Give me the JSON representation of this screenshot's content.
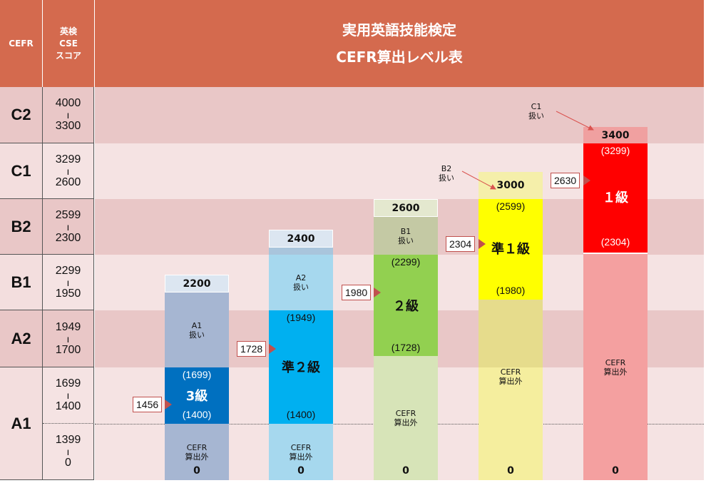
{
  "header": {
    "cefr": "CEFR",
    "cse_line1": "英検",
    "cse_line2": "CSE",
    "cse_line3": "スコア",
    "title_line1": "実用英語技能検定",
    "title_line2": "CEFR算出レベル表"
  },
  "levels": [
    {
      "name": "C2",
      "top": "4000",
      "bottom": "3300"
    },
    {
      "name": "C1",
      "top": "3299",
      "bottom": "2600"
    },
    {
      "name": "B2",
      "top": "2599",
      "bottom": "2300"
    },
    {
      "name": "B1",
      "top": "2299",
      "bottom": "1950"
    },
    {
      "name": "A2",
      "top": "1949",
      "bottom": "1700"
    },
    {
      "name": "A1",
      "top": "1699",
      "bottom": "1400",
      "top2": "1399",
      "bottom2": "0"
    }
  ],
  "range_separator": "ı",
  "grades": [
    {
      "name": "3級",
      "max": "2200",
      "range_top": "(1699)",
      "range_bottom": "(1400)",
      "pass": "1456",
      "upper_note_1": "A1",
      "upper_note_2": "扱い",
      "lower_note_1": "CEFR",
      "lower_note_2": "算出外",
      "zero": "0",
      "color": "#0070c0"
    },
    {
      "name": "準２級",
      "max": "2400",
      "range_top": "(1949)",
      "range_bottom": "(1400)",
      "pass": "1728",
      "upper_note_1": "A2",
      "upper_note_2": "扱い",
      "lower_note_1": "CEFR",
      "lower_note_2": "算出外",
      "zero": "0",
      "color": "#00b0f0"
    },
    {
      "name": "２級",
      "max": "2600",
      "range_top": "(2299)",
      "range_bottom": "(1728)",
      "pass": "1980",
      "upper_note_1": "B1",
      "upper_note_2": "扱い",
      "lower_note_1": "CEFR",
      "lower_note_2": "算出外",
      "zero": "0",
      "color": "#92d050"
    },
    {
      "name": "準１級",
      "max": "3000",
      "range_top": "(2599)",
      "range_bottom": "(1980)",
      "pass": "2304",
      "upper_note_1": "B2",
      "upper_note_2": "扱い",
      "lower_note_1": "CEFR",
      "lower_note_2": "算出外",
      "zero": "0",
      "color": "#ffff00"
    },
    {
      "name": "１級",
      "max": "3400",
      "range_top": "(3299)",
      "range_bottom": "(2304)",
      "pass": "2630",
      "upper_note_1": "C1",
      "upper_note_2": "扱い",
      "lower_note_1": "CEFR",
      "lower_note_2": "算出外",
      "zero": "0",
      "color": "#ff0000"
    }
  ]
}
